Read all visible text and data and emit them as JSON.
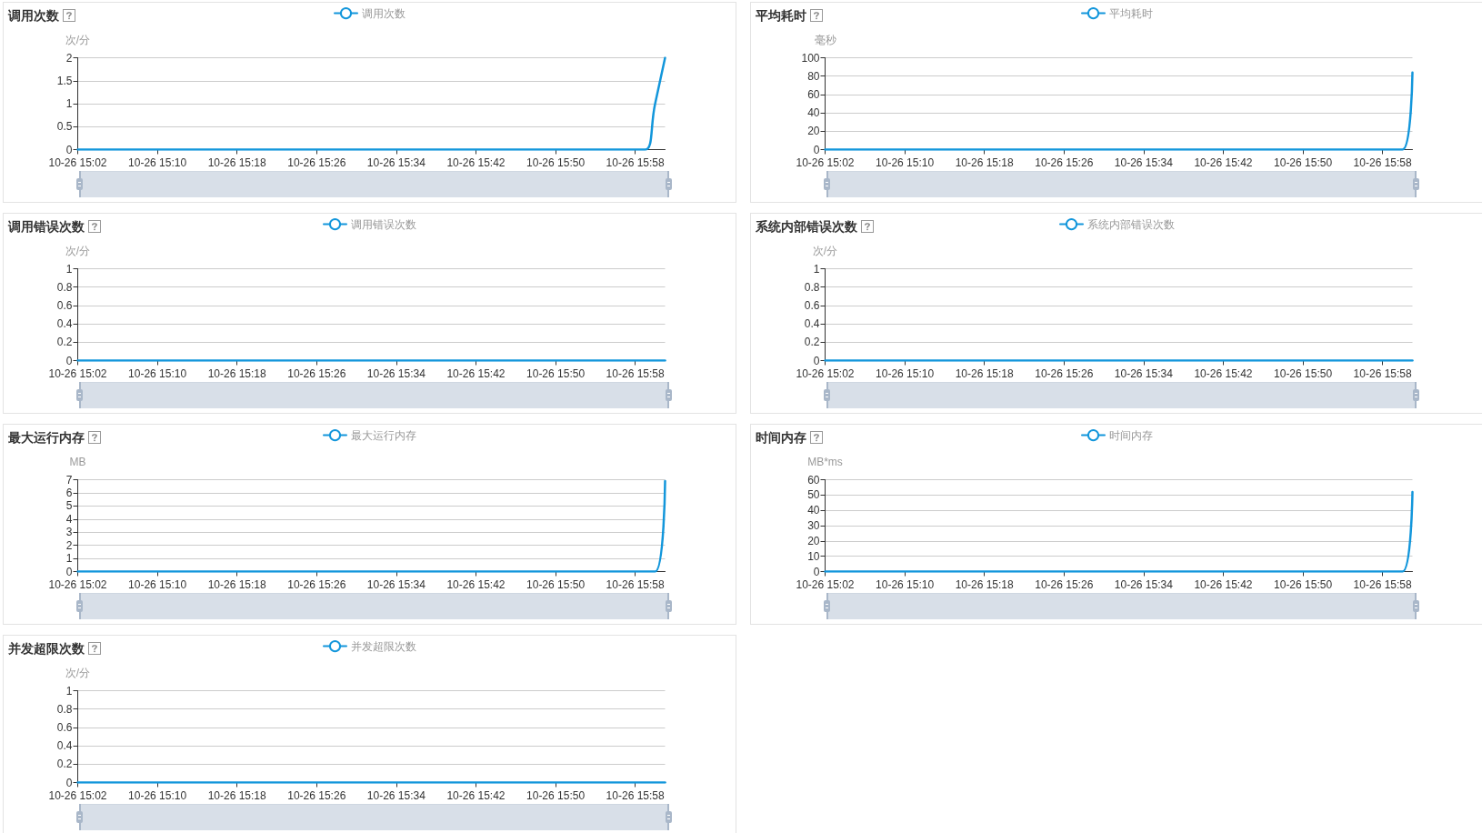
{
  "chart_data": [
    {
      "type": "line",
      "title": "调用次数",
      "ylabel": "次/分",
      "categories": [
        "10-26 15:02",
        null,
        null,
        null,
        null,
        null,
        null,
        null,
        "10-26 15:10",
        null,
        null,
        null,
        null,
        null,
        null,
        null,
        "10-26 15:18",
        null,
        null,
        null,
        null,
        null,
        null,
        null,
        "10-26 15:26",
        null,
        null,
        null,
        null,
        null,
        null,
        null,
        "10-26 15:34",
        null,
        null,
        null,
        null,
        null,
        null,
        null,
        "10-26 15:42",
        null,
        null,
        null,
        null,
        null,
        null,
        null,
        "10-26 15:50",
        null,
        null,
        null,
        null,
        null,
        null,
        null,
        "10-26 15:58",
        null,
        null,
        null
      ],
      "series": [
        {
          "name": "调用次数",
          "color": "#1296db",
          "values": [
            0,
            0,
            0,
            0,
            0,
            0,
            0,
            0,
            0,
            0,
            0,
            0,
            0,
            0,
            0,
            0,
            0,
            0,
            0,
            0,
            0,
            0,
            0,
            0,
            0,
            0,
            0,
            0,
            0,
            0,
            0,
            0,
            0,
            0,
            0,
            0,
            0,
            0,
            0,
            0,
            0,
            0,
            0,
            0,
            0,
            0,
            0,
            0,
            0,
            0,
            0,
            0,
            0,
            0,
            0,
            0,
            0,
            0,
            1,
            2
          ]
        }
      ],
      "ylim": [
        0,
        2
      ],
      "yticks": [
        0,
        0.5,
        1,
        1.5,
        2
      ],
      "grid": "y",
      "legend": "top"
    },
    {
      "type": "line",
      "title": "平均耗时",
      "ylabel": "毫秒",
      "categories": [
        "10-26 15:02",
        null,
        null,
        null,
        null,
        null,
        null,
        null,
        "10-26 15:10",
        null,
        null,
        null,
        null,
        null,
        null,
        null,
        "10-26 15:18",
        null,
        null,
        null,
        null,
        null,
        null,
        null,
        "10-26 15:26",
        null,
        null,
        null,
        null,
        null,
        null,
        null,
        "10-26 15:34",
        null,
        null,
        null,
        null,
        null,
        null,
        null,
        "10-26 15:42",
        null,
        null,
        null,
        null,
        null,
        null,
        null,
        "10-26 15:50",
        null,
        null,
        null,
        null,
        null,
        null,
        null,
        "10-26 15:58",
        null,
        null,
        null
      ],
      "series": [
        {
          "name": "平均耗时",
          "color": "#1296db",
          "values": [
            0,
            0,
            0,
            0,
            0,
            0,
            0,
            0,
            0,
            0,
            0,
            0,
            0,
            0,
            0,
            0,
            0,
            0,
            0,
            0,
            0,
            0,
            0,
            0,
            0,
            0,
            0,
            0,
            0,
            0,
            0,
            0,
            0,
            0,
            0,
            0,
            0,
            0,
            0,
            0,
            0,
            0,
            0,
            0,
            0,
            0,
            0,
            0,
            0,
            0,
            0,
            0,
            0,
            0,
            0,
            0,
            0,
            0,
            0,
            84
          ]
        }
      ],
      "ylim": [
        0,
        100
      ],
      "yticks": [
        0,
        20,
        40,
        60,
        80,
        100
      ],
      "grid": "y",
      "legend": "top"
    },
    {
      "type": "line",
      "title": "调用错误次数",
      "ylabel": "次/分",
      "categories": [
        "10-26 15:02",
        null,
        null,
        null,
        null,
        null,
        null,
        null,
        "10-26 15:10",
        null,
        null,
        null,
        null,
        null,
        null,
        null,
        "10-26 15:18",
        null,
        null,
        null,
        null,
        null,
        null,
        null,
        "10-26 15:26",
        null,
        null,
        null,
        null,
        null,
        null,
        null,
        "10-26 15:34",
        null,
        null,
        null,
        null,
        null,
        null,
        null,
        "10-26 15:42",
        null,
        null,
        null,
        null,
        null,
        null,
        null,
        "10-26 15:50",
        null,
        null,
        null,
        null,
        null,
        null,
        null,
        "10-26 15:58",
        null,
        null,
        null
      ],
      "series": [
        {
          "name": "调用错误次数",
          "color": "#1296db",
          "values": [
            0,
            0,
            0,
            0,
            0,
            0,
            0,
            0,
            0,
            0,
            0,
            0,
            0,
            0,
            0,
            0,
            0,
            0,
            0,
            0,
            0,
            0,
            0,
            0,
            0,
            0,
            0,
            0,
            0,
            0,
            0,
            0,
            0,
            0,
            0,
            0,
            0,
            0,
            0,
            0,
            0,
            0,
            0,
            0,
            0,
            0,
            0,
            0,
            0,
            0,
            0,
            0,
            0,
            0,
            0,
            0,
            0,
            0,
            0,
            0
          ]
        }
      ],
      "ylim": [
        0,
        1
      ],
      "yticks": [
        0,
        0.2,
        0.4,
        0.6,
        0.8,
        1
      ],
      "grid": "y",
      "legend": "top"
    },
    {
      "type": "line",
      "title": "系统内部错误次数",
      "ylabel": "次/分",
      "categories": [
        "10-26 15:02",
        null,
        null,
        null,
        null,
        null,
        null,
        null,
        "10-26 15:10",
        null,
        null,
        null,
        null,
        null,
        null,
        null,
        "10-26 15:18",
        null,
        null,
        null,
        null,
        null,
        null,
        null,
        "10-26 15:26",
        null,
        null,
        null,
        null,
        null,
        null,
        null,
        "10-26 15:34",
        null,
        null,
        null,
        null,
        null,
        null,
        null,
        "10-26 15:42",
        null,
        null,
        null,
        null,
        null,
        null,
        null,
        "10-26 15:50",
        null,
        null,
        null,
        null,
        null,
        null,
        null,
        "10-26 15:58",
        null,
        null,
        null
      ],
      "series": [
        {
          "name": "系统内部错误次数",
          "color": "#1296db",
          "values": [
            0,
            0,
            0,
            0,
            0,
            0,
            0,
            0,
            0,
            0,
            0,
            0,
            0,
            0,
            0,
            0,
            0,
            0,
            0,
            0,
            0,
            0,
            0,
            0,
            0,
            0,
            0,
            0,
            0,
            0,
            0,
            0,
            0,
            0,
            0,
            0,
            0,
            0,
            0,
            0,
            0,
            0,
            0,
            0,
            0,
            0,
            0,
            0,
            0,
            0,
            0,
            0,
            0,
            0,
            0,
            0,
            0,
            0,
            0,
            0
          ]
        }
      ],
      "ylim": [
        0,
        1
      ],
      "yticks": [
        0,
        0.2,
        0.4,
        0.6,
        0.8,
        1
      ],
      "grid": "y",
      "legend": "top"
    },
    {
      "type": "line",
      "title": "最大运行内存",
      "ylabel": "MB",
      "categories": [
        "10-26 15:02",
        null,
        null,
        null,
        null,
        null,
        null,
        null,
        "10-26 15:10",
        null,
        null,
        null,
        null,
        null,
        null,
        null,
        "10-26 15:18",
        null,
        null,
        null,
        null,
        null,
        null,
        null,
        "10-26 15:26",
        null,
        null,
        null,
        null,
        null,
        null,
        null,
        "10-26 15:34",
        null,
        null,
        null,
        null,
        null,
        null,
        null,
        "10-26 15:42",
        null,
        null,
        null,
        null,
        null,
        null,
        null,
        "10-26 15:50",
        null,
        null,
        null,
        null,
        null,
        null,
        null,
        "10-26 15:58",
        null,
        null,
        null
      ],
      "series": [
        {
          "name": "最大运行内存",
          "color": "#1296db",
          "values": [
            0,
            0,
            0,
            0,
            0,
            0,
            0,
            0,
            0,
            0,
            0,
            0,
            0,
            0,
            0,
            0,
            0,
            0,
            0,
            0,
            0,
            0,
            0,
            0,
            0,
            0,
            0,
            0,
            0,
            0,
            0,
            0,
            0,
            0,
            0,
            0,
            0,
            0,
            0,
            0,
            0,
            0,
            0,
            0,
            0,
            0,
            0,
            0,
            0,
            0,
            0,
            0,
            0,
            0,
            0,
            0,
            0,
            0,
            0,
            6.9
          ]
        }
      ],
      "ylim": [
        0,
        7
      ],
      "yticks": [
        0,
        1,
        2,
        3,
        4,
        5,
        6,
        7
      ],
      "grid": "y",
      "legend": "top"
    },
    {
      "type": "line",
      "title": "时间内存",
      "ylabel": "MB*ms",
      "categories": [
        "10-26 15:02",
        null,
        null,
        null,
        null,
        null,
        null,
        null,
        "10-26 15:10",
        null,
        null,
        null,
        null,
        null,
        null,
        null,
        "10-26 15:18",
        null,
        null,
        null,
        null,
        null,
        null,
        null,
        "10-26 15:26",
        null,
        null,
        null,
        null,
        null,
        null,
        null,
        "10-26 15:34",
        null,
        null,
        null,
        null,
        null,
        null,
        null,
        "10-26 15:42",
        null,
        null,
        null,
        null,
        null,
        null,
        null,
        "10-26 15:50",
        null,
        null,
        null,
        null,
        null,
        null,
        null,
        "10-26 15:58",
        null,
        null,
        null
      ],
      "series": [
        {
          "name": "时间内存",
          "color": "#1296db",
          "values": [
            0,
            0,
            0,
            0,
            0,
            0,
            0,
            0,
            0,
            0,
            0,
            0,
            0,
            0,
            0,
            0,
            0,
            0,
            0,
            0,
            0,
            0,
            0,
            0,
            0,
            0,
            0,
            0,
            0,
            0,
            0,
            0,
            0,
            0,
            0,
            0,
            0,
            0,
            0,
            0,
            0,
            0,
            0,
            0,
            0,
            0,
            0,
            0,
            0,
            0,
            0,
            0,
            0,
            0,
            0,
            0,
            0,
            0,
            0,
            52
          ]
        }
      ],
      "ylim": [
        0,
        60
      ],
      "yticks": [
        0,
        10,
        20,
        30,
        40,
        50,
        60
      ],
      "grid": "y",
      "legend": "top"
    },
    {
      "type": "line",
      "title": "并发超限次数",
      "ylabel": "次/分",
      "categories": [
        "10-26 15:02",
        null,
        null,
        null,
        null,
        null,
        null,
        null,
        "10-26 15:10",
        null,
        null,
        null,
        null,
        null,
        null,
        null,
        "10-26 15:18",
        null,
        null,
        null,
        null,
        null,
        null,
        null,
        "10-26 15:26",
        null,
        null,
        null,
        null,
        null,
        null,
        null,
        "10-26 15:34",
        null,
        null,
        null,
        null,
        null,
        null,
        null,
        "10-26 15:42",
        null,
        null,
        null,
        null,
        null,
        null,
        null,
        "10-26 15:50",
        null,
        null,
        null,
        null,
        null,
        null,
        null,
        "10-26 15:58",
        null,
        null,
        null
      ],
      "series": [
        {
          "name": "并发超限次数",
          "color": "#1296db",
          "values": [
            0,
            0,
            0,
            0,
            0,
            0,
            0,
            0,
            0,
            0,
            0,
            0,
            0,
            0,
            0,
            0,
            0,
            0,
            0,
            0,
            0,
            0,
            0,
            0,
            0,
            0,
            0,
            0,
            0,
            0,
            0,
            0,
            0,
            0,
            0,
            0,
            0,
            0,
            0,
            0,
            0,
            0,
            0,
            0,
            0,
            0,
            0,
            0,
            0,
            0,
            0,
            0,
            0,
            0,
            0,
            0,
            0,
            0,
            0,
            0
          ]
        }
      ],
      "ylim": [
        0,
        1
      ],
      "yticks": [
        0,
        0.2,
        0.4,
        0.6,
        0.8,
        1
      ],
      "grid": "y",
      "legend": "top"
    }
  ]
}
